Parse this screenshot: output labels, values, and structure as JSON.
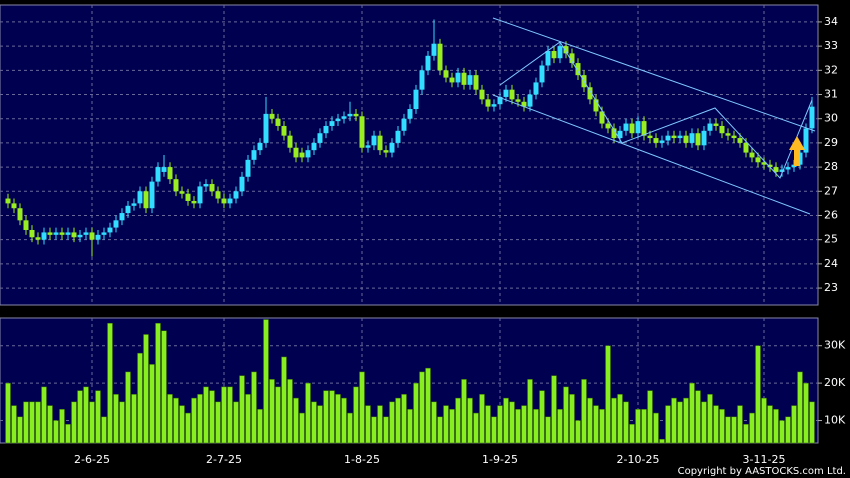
{
  "chart_data": [
    {
      "type": "candlestick",
      "categories": [
        null,
        null,
        null,
        null,
        null,
        null,
        null,
        null,
        null,
        null,
        null,
        null,
        null,
        null,
        "2-6-25",
        null,
        null,
        null,
        null,
        null,
        null,
        null,
        null,
        null,
        null,
        null,
        null,
        null,
        null,
        null,
        null,
        null,
        null,
        null,
        null,
        null,
        "2-7-25",
        null,
        null,
        null,
        null,
        null,
        null,
        null,
        null,
        null,
        null,
        null,
        null,
        null,
        null,
        null,
        null,
        null,
        null,
        null,
        null,
        null,
        null,
        "1-8-25",
        null,
        null,
        null,
        null,
        null,
        null,
        null,
        null,
        null,
        null,
        null,
        null,
        null,
        null,
        null,
        null,
        null,
        null,
        null,
        null,
        null,
        null,
        "1-9-25",
        null,
        null,
        null,
        null,
        null,
        null,
        null,
        null,
        null,
        null,
        null,
        null,
        null,
        null,
        null,
        null,
        null,
        null,
        null,
        null,
        null,
        null,
        "2-10-25",
        null,
        null,
        null,
        null,
        null,
        null,
        null,
        null,
        null,
        null,
        null,
        null,
        null,
        null,
        null,
        null,
        null,
        null,
        null,
        null,
        "3-11-25",
        null,
        null,
        null,
        null,
        null,
        null,
        null,
        null
      ],
      "series": [
        {
          "name": "open",
          "values": [
            26.7,
            26.5,
            26.3,
            25.8,
            25.4,
            25.1,
            25.0,
            25.3,
            25.2,
            25.3,
            25.2,
            25.3,
            25.1,
            25.2,
            25.3,
            25.0,
            25.2,
            25.3,
            25.5,
            25.8,
            26.1,
            26.4,
            26.5,
            27.0,
            26.3,
            27.4,
            27.8,
            28.0,
            27.5,
            27.0,
            26.9,
            26.6,
            26.5,
            27.2,
            27.3,
            27.0,
            26.7,
            26.5,
            26.7,
            27.0,
            27.6,
            28.3,
            28.7,
            29.0,
            30.2,
            30.0,
            29.7,
            29.3,
            28.8,
            28.6,
            28.4,
            28.7,
            29.0,
            29.4,
            29.7,
            29.9,
            30.0,
            30.1,
            30.2,
            30.1,
            28.8,
            28.9,
            29.3,
            28.7,
            28.6,
            29.0,
            29.5,
            30.0,
            30.4,
            31.2,
            32.0,
            32.6,
            33.1,
            32.0,
            31.7,
            31.5,
            31.9,
            31.4,
            31.8,
            31.2,
            30.8,
            30.5,
            30.6,
            30.9,
            31.2,
            30.8,
            30.7,
            30.5,
            31.0,
            31.5,
            32.2,
            32.8,
            32.5,
            33.0,
            32.7,
            32.3,
            31.8,
            31.3,
            30.8,
            30.3,
            29.8,
            29.6,
            29.2,
            29.5,
            29.8,
            29.4,
            29.9,
            29.3,
            29.2,
            29.0,
            29.1,
            29.3,
            29.2,
            29.3,
            29.0,
            29.4,
            28.9,
            29.5,
            29.8,
            29.7,
            29.4,
            29.3,
            29.2,
            29.0,
            28.6,
            28.4,
            28.2,
            28.1,
            28.0,
            27.8,
            27.9,
            28.0,
            28.1,
            28.6,
            29.6
          ]
        },
        {
          "name": "high",
          "values": [
            26.9,
            26.7,
            26.5,
            26.0,
            25.6,
            25.3,
            25.5,
            25.5,
            25.5,
            25.5,
            25.5,
            25.5,
            25.4,
            25.5,
            25.5,
            25.4,
            25.5,
            25.7,
            26.0,
            26.3,
            26.6,
            26.7,
            27.2,
            27.2,
            27.6,
            28.2,
            28.5,
            28.2,
            27.7,
            27.2,
            27.1,
            26.8,
            27.4,
            27.5,
            27.5,
            27.2,
            26.9,
            26.9,
            27.2,
            27.8,
            28.5,
            28.9,
            29.2,
            30.9,
            30.4,
            30.2,
            29.9,
            29.5,
            29.0,
            28.8,
            28.9,
            29.2,
            29.6,
            29.9,
            30.1,
            30.2,
            30.3,
            30.7,
            30.4,
            30.3,
            29.1,
            29.5,
            29.5,
            28.9,
            29.2,
            29.7,
            30.2,
            30.6,
            31.4,
            32.2,
            32.8,
            34.1,
            33.3,
            32.2,
            31.9,
            32.1,
            32.1,
            32.0,
            32.0,
            31.4,
            31.0,
            30.8,
            31.1,
            31.4,
            31.4,
            31.0,
            30.9,
            31.2,
            31.7,
            32.4,
            33.0,
            33.0,
            33.2,
            33.2,
            32.9,
            32.5,
            32.0,
            31.5,
            31.0,
            30.5,
            30.0,
            29.8,
            29.7,
            30.0,
            30.0,
            30.1,
            30.1,
            29.5,
            29.4,
            29.3,
            29.5,
            29.5,
            29.5,
            29.5,
            29.6,
            29.6,
            29.7,
            30.0,
            30.0,
            29.9,
            29.6,
            29.5,
            29.4,
            29.2,
            28.8,
            28.6,
            28.4,
            28.3,
            28.2,
            28.1,
            28.2,
            28.3,
            28.8,
            29.8,
            30.9
          ]
        },
        {
          "name": "low",
          "values": [
            26.3,
            26.1,
            25.6,
            25.2,
            24.9,
            24.8,
            24.8,
            25.0,
            25.0,
            25.0,
            25.0,
            24.9,
            24.9,
            25.0,
            24.3,
            24.8,
            25.0,
            25.1,
            25.3,
            25.6,
            25.9,
            26.2,
            26.3,
            26.1,
            26.1,
            27.2,
            27.6,
            27.3,
            26.8,
            26.7,
            26.4,
            26.3,
            26.3,
            27.0,
            26.8,
            26.5,
            26.3,
            26.3,
            26.5,
            26.8,
            27.4,
            28.1,
            28.5,
            28.8,
            29.8,
            29.5,
            29.1,
            28.6,
            28.2,
            28.2,
            28.2,
            28.5,
            28.8,
            29.2,
            29.5,
            29.7,
            29.8,
            29.9,
            29.9,
            28.6,
            28.6,
            28.7,
            28.5,
            28.4,
            28.4,
            28.8,
            29.3,
            29.8,
            30.2,
            31.0,
            31.8,
            32.4,
            31.8,
            31.5,
            31.3,
            31.3,
            31.2,
            31.2,
            31.0,
            30.6,
            30.3,
            30.3,
            30.4,
            30.7,
            30.6,
            30.5,
            30.3,
            30.3,
            30.8,
            31.3,
            32.0,
            32.3,
            32.3,
            32.5,
            32.1,
            31.6,
            31.1,
            30.6,
            30.1,
            29.6,
            29.4,
            29.0,
            29.0,
            29.3,
            29.2,
            29.2,
            29.1,
            29.0,
            28.8,
            28.8,
            28.9,
            29.0,
            29.0,
            28.8,
            28.8,
            28.7,
            28.7,
            29.3,
            29.5,
            29.2,
            29.1,
            29.0,
            28.8,
            28.4,
            28.2,
            28.0,
            27.9,
            27.8,
            27.6,
            27.6,
            27.7,
            27.8,
            27.9,
            28.4,
            29.4
          ]
        },
        {
          "name": "close",
          "values": [
            26.5,
            26.3,
            25.8,
            25.4,
            25.1,
            25.0,
            25.3,
            25.2,
            25.3,
            25.2,
            25.3,
            25.1,
            25.2,
            25.3,
            25.0,
            25.2,
            25.3,
            25.5,
            25.8,
            26.1,
            26.4,
            26.5,
            27.0,
            26.3,
            27.4,
            28.0,
            28.0,
            27.5,
            27.0,
            26.9,
            26.6,
            26.5,
            27.2,
            27.3,
            27.0,
            26.7,
            26.5,
            26.7,
            27.0,
            27.6,
            28.3,
            28.7,
            29.0,
            30.2,
            30.0,
            29.7,
            29.3,
            28.8,
            28.4,
            28.4,
            28.7,
            29.0,
            29.4,
            29.7,
            29.9,
            30.0,
            30.1,
            30.2,
            30.1,
            28.8,
            28.9,
            29.3,
            28.7,
            28.6,
            29.0,
            29.5,
            30.0,
            30.4,
            31.2,
            32.0,
            32.6,
            33.1,
            32.0,
            31.7,
            31.5,
            31.9,
            31.4,
            31.8,
            31.2,
            30.8,
            30.5,
            30.6,
            30.9,
            31.2,
            30.8,
            30.7,
            30.5,
            31.0,
            31.5,
            32.2,
            32.8,
            32.5,
            33.0,
            32.7,
            32.3,
            31.8,
            31.3,
            30.8,
            30.3,
            29.8,
            29.6,
            29.2,
            29.5,
            29.8,
            29.4,
            29.9,
            29.3,
            29.2,
            29.0,
            29.1,
            29.3,
            29.2,
            29.3,
            29.0,
            29.4,
            28.9,
            29.5,
            29.8,
            29.7,
            29.4,
            29.3,
            29.2,
            29.0,
            28.6,
            28.4,
            28.2,
            28.1,
            28.0,
            27.8,
            27.9,
            28.0,
            28.1,
            28.6,
            29.6,
            30.5
          ]
        }
      ],
      "up_color": "#33ddff",
      "down_color": "#99ee22",
      "ylim": [
        22.3,
        34.7
      ],
      "yticks": [
        23,
        24,
        25,
        26,
        27,
        28,
        29,
        30,
        31,
        32,
        33,
        34
      ],
      "grid": true
    },
    {
      "type": "bar",
      "values": [
        20000,
        14000,
        11000,
        15000,
        15000,
        15000,
        19000,
        14000,
        10000,
        13000,
        9000,
        15000,
        18000,
        19000,
        15000,
        18000,
        11000,
        36000,
        17000,
        15000,
        23000,
        17000,
        28000,
        33000,
        25000,
        36000,
        34000,
        17000,
        16000,
        14000,
        12000,
        16000,
        17000,
        19000,
        18000,
        15000,
        19000,
        19000,
        15000,
        22000,
        17000,
        23000,
        13000,
        37000,
        21000,
        19000,
        27000,
        21000,
        16000,
        12000,
        20000,
        15000,
        14000,
        18000,
        18000,
        17000,
        16000,
        12000,
        19000,
        23000,
        14000,
        11000,
        14000,
        11000,
        15000,
        16000,
        17000,
        13000,
        20000,
        23000,
        24000,
        15000,
        11000,
        14000,
        13000,
        16000,
        21000,
        16000,
        12000,
        17000,
        14000,
        11000,
        14000,
        16000,
        15000,
        13000,
        14000,
        21000,
        13000,
        18000,
        11000,
        22000,
        13000,
        19000,
        17000,
        10000,
        21000,
        16000,
        14000,
        13000,
        30000,
        16000,
        17000,
        15000,
        9000,
        13000,
        13000,
        18000,
        12000,
        5000,
        14000,
        16000,
        15000,
        16000,
        20000,
        18000,
        15000,
        17000,
        14000,
        13000,
        11000,
        11000,
        14000,
        9000,
        12000,
        30000,
        16000,
        14000,
        13000,
        10000,
        11000,
        14000,
        23000,
        20000,
        15000
      ],
      "color": "#88ee22",
      "ylim": [
        4000,
        37400
      ],
      "yticks": [
        {
          "value": 10000,
          "label": "10K"
        },
        {
          "value": 20000,
          "label": "20K"
        },
        {
          "value": 30000,
          "label": "30K"
        }
      ],
      "grid": true
    }
  ],
  "copyright": "Copyright by AASTOCKS.com Ltd."
}
